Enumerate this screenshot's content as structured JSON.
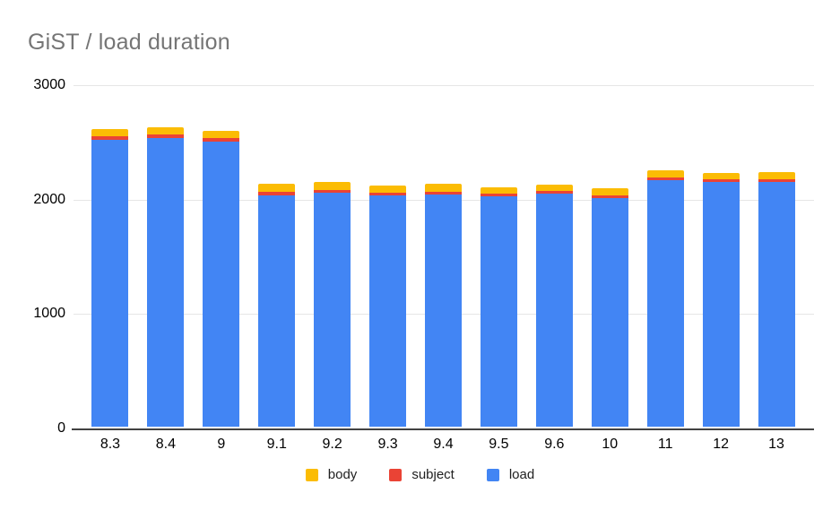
{
  "title": "GiST / load duration",
  "chart_data": {
    "type": "bar",
    "stacked": true,
    "title": "GiST / load duration",
    "xlabel": "",
    "ylabel": "",
    "categories": [
      "8.3",
      "8.4",
      "9",
      "9.1",
      "9.2",
      "9.3",
      "9.4",
      "9.5",
      "9.6",
      "10",
      "11",
      "12",
      "13"
    ],
    "series": [
      {
        "name": "load",
        "color": "#4285F4",
        "values": [
          2510,
          2525,
          2495,
          2020,
          2045,
          2020,
          2030,
          2010,
          2035,
          2000,
          2155,
          2135,
          2140
        ]
      },
      {
        "name": "subject",
        "color": "#EA4335",
        "values": [
          30,
          30,
          30,
          30,
          25,
          25,
          25,
          25,
          25,
          25,
          25,
          25,
          25
        ]
      },
      {
        "name": "body",
        "color": "#FBBC04",
        "values": [
          60,
          60,
          60,
          70,
          65,
          60,
          65,
          60,
          55,
          60,
          60,
          55,
          60
        ]
      }
    ],
    "ylim": [
      0,
      3000
    ],
    "yticks": [
      0,
      1000,
      2000,
      3000
    ],
    "ytick_labels": [
      "0",
      "1000",
      "2000",
      "3000"
    ],
    "grid": true,
    "legend_position": "bottom"
  },
  "legend": {
    "items": [
      {
        "label": "body",
        "color": "#FBBC04"
      },
      {
        "label": "subject",
        "color": "#EA4335"
      },
      {
        "label": "load",
        "color": "#4285F4"
      }
    ]
  },
  "colors": {
    "background": "#FFFFFF",
    "title_text": "#757575",
    "axis_text": "#000000",
    "gridline": "#E6E6E6",
    "axis_line": "#424242"
  }
}
